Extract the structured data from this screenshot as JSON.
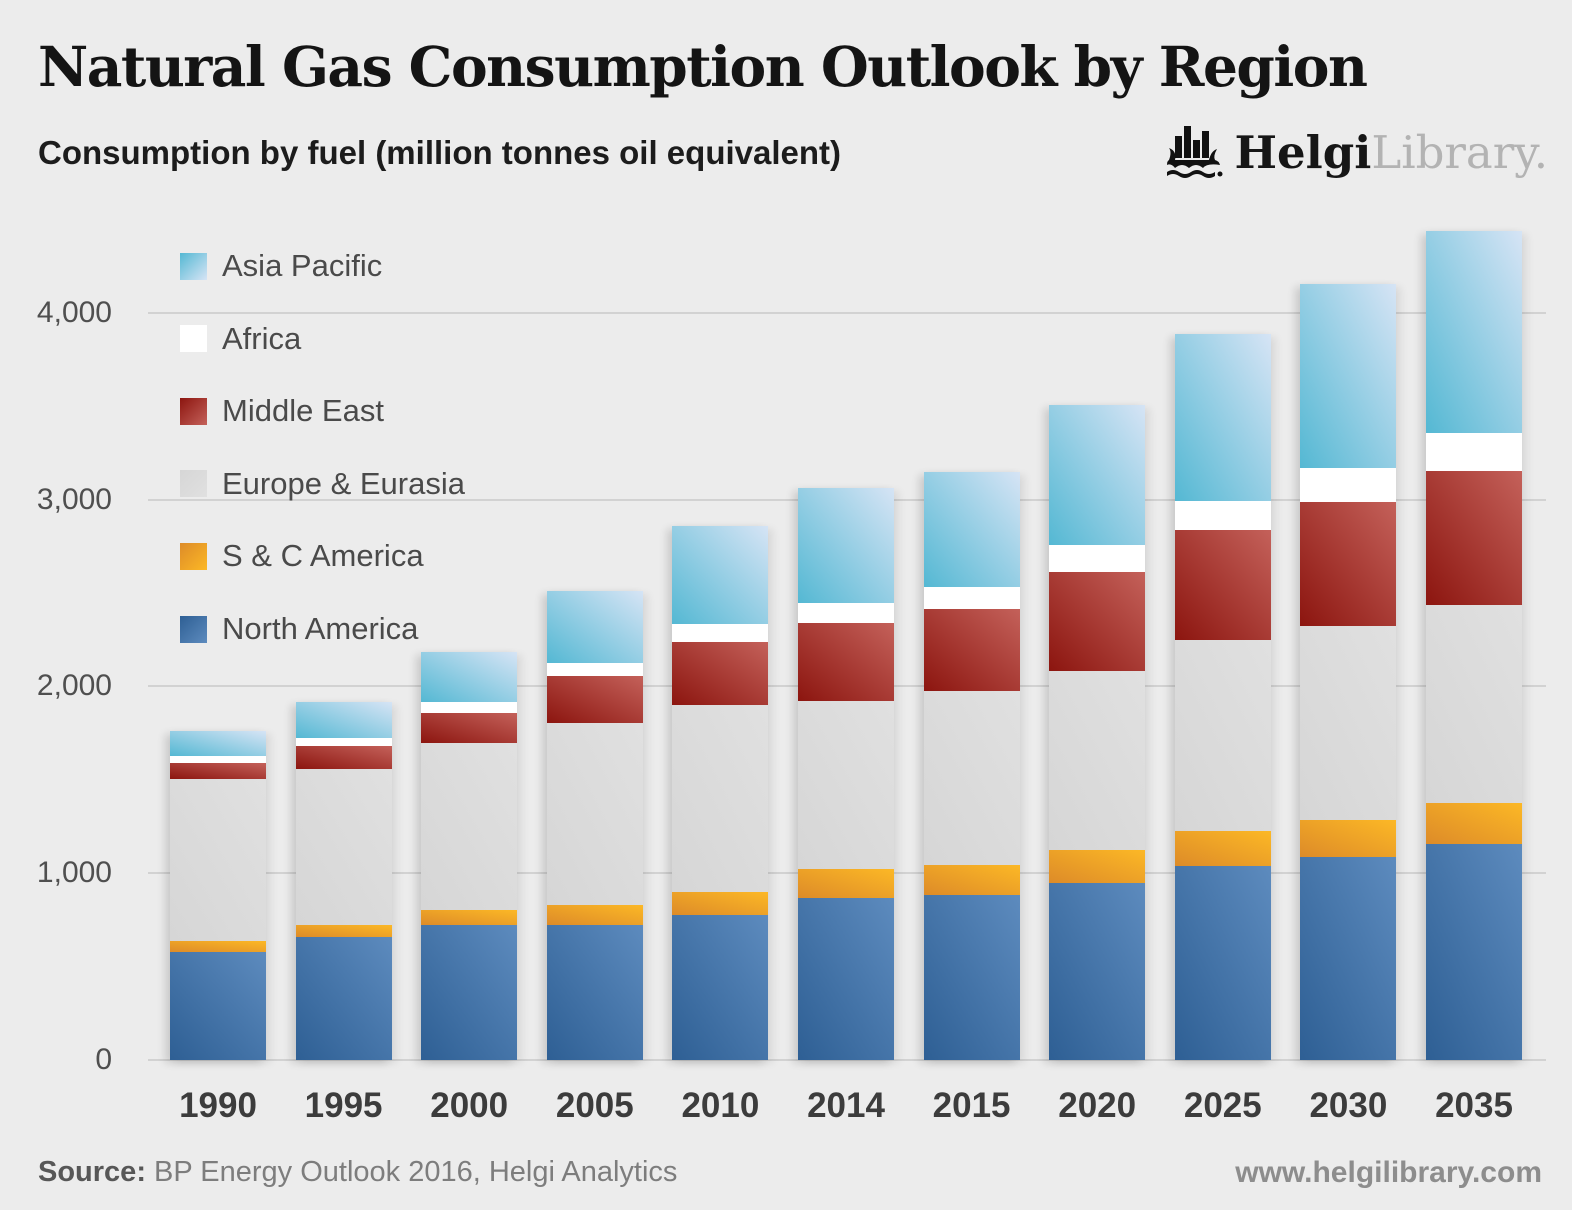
{
  "header": {
    "title": "Natural Gas Consumption Outlook by Region",
    "subtitle": "Consumption by fuel (million tonnes oil equivalent)",
    "logo": {
      "brand_bold": "Helgi",
      "brand_light": "Library."
    }
  },
  "footer": {
    "source_label": "Source:",
    "source_text": " BP Energy Outlook 2016, Helgi Analytics",
    "website": "www.helgilibrary.com"
  },
  "chart_data": {
    "type": "bar",
    "stacked": true,
    "title": "Natural Gas Consumption Outlook by Region",
    "subtitle": "Consumption by fuel (million tonnes oil equivalent)",
    "xlabel": "",
    "ylabel": "million tonnes oil equivalent",
    "grid": true,
    "legend_position": "top-left-inside",
    "ylim": [
      0,
      4500
    ],
    "yticks": [
      {
        "value": 0,
        "label": "0"
      },
      {
        "value": 1000,
        "label": "1,000"
      },
      {
        "value": 2000,
        "label": "2,000"
      },
      {
        "value": 3000,
        "label": "3,000"
      },
      {
        "value": 4000,
        "label": "4,000"
      }
    ],
    "categories": [
      "1990",
      "1995",
      "2000",
      "2005",
      "2010",
      "2014",
      "2015",
      "2020",
      "2025",
      "2030",
      "2035"
    ],
    "series": [
      {
        "name": "North America",
        "color_from": "#2e5f94",
        "color_to": "#5d8bbe",
        "values": [
          580,
          660,
          720,
          720,
          775,
          865,
          885,
          950,
          1040,
          1085,
          1155
        ]
      },
      {
        "name": "S & C America",
        "color_from": "#dd8b28",
        "color_to": "#fcb826",
        "values": [
          55,
          65,
          85,
          110,
          125,
          155,
          160,
          175,
          185,
          200,
          220
        ]
      },
      {
        "name": "Europe & Eurasia",
        "color_from": "#d6d6d6",
        "color_to": "#e0e0e0",
        "values": [
          870,
          830,
          890,
          975,
          1000,
          900,
          930,
          960,
          1025,
          1040,
          1060
        ]
      },
      {
        "name": "Middle East",
        "color_from": "#8c150f",
        "color_to": "#c4615a",
        "values": [
          85,
          125,
          165,
          250,
          340,
          420,
          440,
          530,
          585,
          660,
          720
        ]
      },
      {
        "name": "Africa",
        "color_from": "#ffffff",
        "color_to": "#ffffff",
        "values": [
          35,
          45,
          55,
          70,
          95,
          105,
          115,
          140,
          160,
          185,
          200
        ]
      },
      {
        "name": "Asia Pacific",
        "color_from": "#54b8d3",
        "color_to": "#d6e4f5",
        "values": [
          135,
          190,
          270,
          385,
          525,
          615,
          620,
          750,
          890,
          985,
          1085
        ]
      }
    ],
    "legend_top_to_bottom": [
      "Asia Pacific",
      "Africa",
      "Middle East",
      "Europe & Eurasia",
      "S & C America",
      "North America"
    ],
    "totals": [
      1760,
      1915,
      2185,
      2510,
      2860,
      3060,
      3150,
      3505,
      3885,
      4155,
      4440
    ]
  }
}
